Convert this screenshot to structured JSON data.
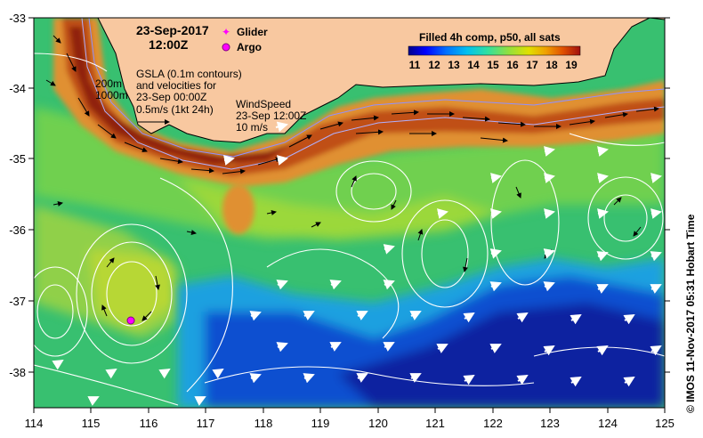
{
  "map": {
    "datetime": "23-Sep-2017",
    "time": "12:00Z",
    "legend": {
      "glider_label": "Glider",
      "glider_color": "#ff00ff",
      "argo_label": "Argo",
      "argo_color": "#ff00ff"
    },
    "colorbar": {
      "title": "Filled 4h comp, p50, all sats",
      "ticks": [
        "11",
        "12",
        "13",
        "14",
        "15",
        "16",
        "17",
        "18",
        "19"
      ],
      "colors": [
        "#00008b",
        "#0000ff",
        "#0060ff",
        "#00b0ff",
        "#20e0c0",
        "#60e060",
        "#b0e030",
        "#f0c000",
        "#f08000",
        "#e04000",
        "#a01010"
      ]
    },
    "gsla": {
      "line1": "GSLA (0.1m contours)",
      "line2": "and velocities for",
      "line3": "23-Sep 00:00Z",
      "line4": "0.5m/s (1kt 24h)"
    },
    "isobaths": {
      "shallow": "200m",
      "deep": "1000m"
    },
    "wind": {
      "line1": "WindSpeed",
      "line2": "23-Sep 12:00Z",
      "line3": "10 m/s"
    },
    "credit": "© IMOS 11-Nov-2017 05:31 Hobart Time",
    "x_ticks": [
      "114",
      "115",
      "116",
      "117",
      "118",
      "119",
      "120",
      "121",
      "122",
      "123",
      "124",
      "125"
    ],
    "y_ticks": [
      "-33",
      "-34",
      "-35",
      "-36",
      "-37",
      "-38"
    ],
    "colors": {
      "land": "#f8c8a0",
      "cold_water": "#1040c0",
      "mid_water": "#40c060",
      "warm_water": "#e08020",
      "contour": "#ffffff",
      "current_arrow": "#000000",
      "wind_arrow": "#ffffff"
    }
  }
}
